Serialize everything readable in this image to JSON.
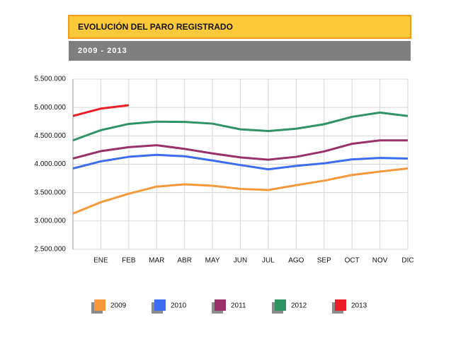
{
  "chart_data": {
    "type": "line",
    "title": "EVOLUCIÓN DEL PARO REGISTRADO",
    "subtitle": "2009 - 2013",
    "categories": [
      null,
      "ENE",
      "FEB",
      "MAR",
      "ABR",
      "MAY",
      "JUN",
      "JUL",
      "AGO",
      "SEP",
      "OCT",
      "NOV",
      "DIC"
    ],
    "series": [
      {
        "name": "2009",
        "color": "#f7993b",
        "values": [
          3130000,
          3330000,
          3480000,
          3605000,
          3645000,
          3620000,
          3565000,
          3545000,
          3630000,
          3710000,
          3810000,
          3870000,
          3925000
        ]
      },
      {
        "name": "2010",
        "color": "#3c6df0",
        "values": [
          3925000,
          4050000,
          4130000,
          4165000,
          4140000,
          4065000,
          3985000,
          3910000,
          3970000,
          4015000,
          4085000,
          4110000,
          4100000
        ]
      },
      {
        "name": "2011",
        "color": "#9b2f6a",
        "values": [
          4100000,
          4230000,
          4300000,
          4335000,
          4270000,
          4190000,
          4120000,
          4080000,
          4130000,
          4225000,
          4360000,
          4420000,
          4420000
        ]
      },
      {
        "name": "2012",
        "color": "#2e9466",
        "values": [
          4420000,
          4600000,
          4710000,
          4750000,
          4745000,
          4715000,
          4615000,
          4585000,
          4625000,
          4705000,
          4835000,
          4910000,
          4850000
        ]
      },
      {
        "name": "2013",
        "color": "#ee1c25",
        "values": [
          4850000,
          4980000,
          5040000,
          null,
          null,
          null,
          null,
          null,
          null,
          null,
          null,
          null,
          null
        ]
      }
    ],
    "ylim": [
      2500000,
      5500000
    ],
    "yticks": [
      {
        "value": 2500000,
        "label": "2.500.000"
      },
      {
        "value": 3000000,
        "label": "3.000.000"
      },
      {
        "value": 3500000,
        "label": "3.500.000"
      },
      {
        "value": 4000000,
        "label": "4.000.000"
      },
      {
        "value": 4500000,
        "label": "4.500.000"
      },
      {
        "value": 5000000,
        "label": "5.000.000"
      },
      {
        "value": 5500000,
        "label": "5.500.000"
      }
    ],
    "grid": true
  }
}
